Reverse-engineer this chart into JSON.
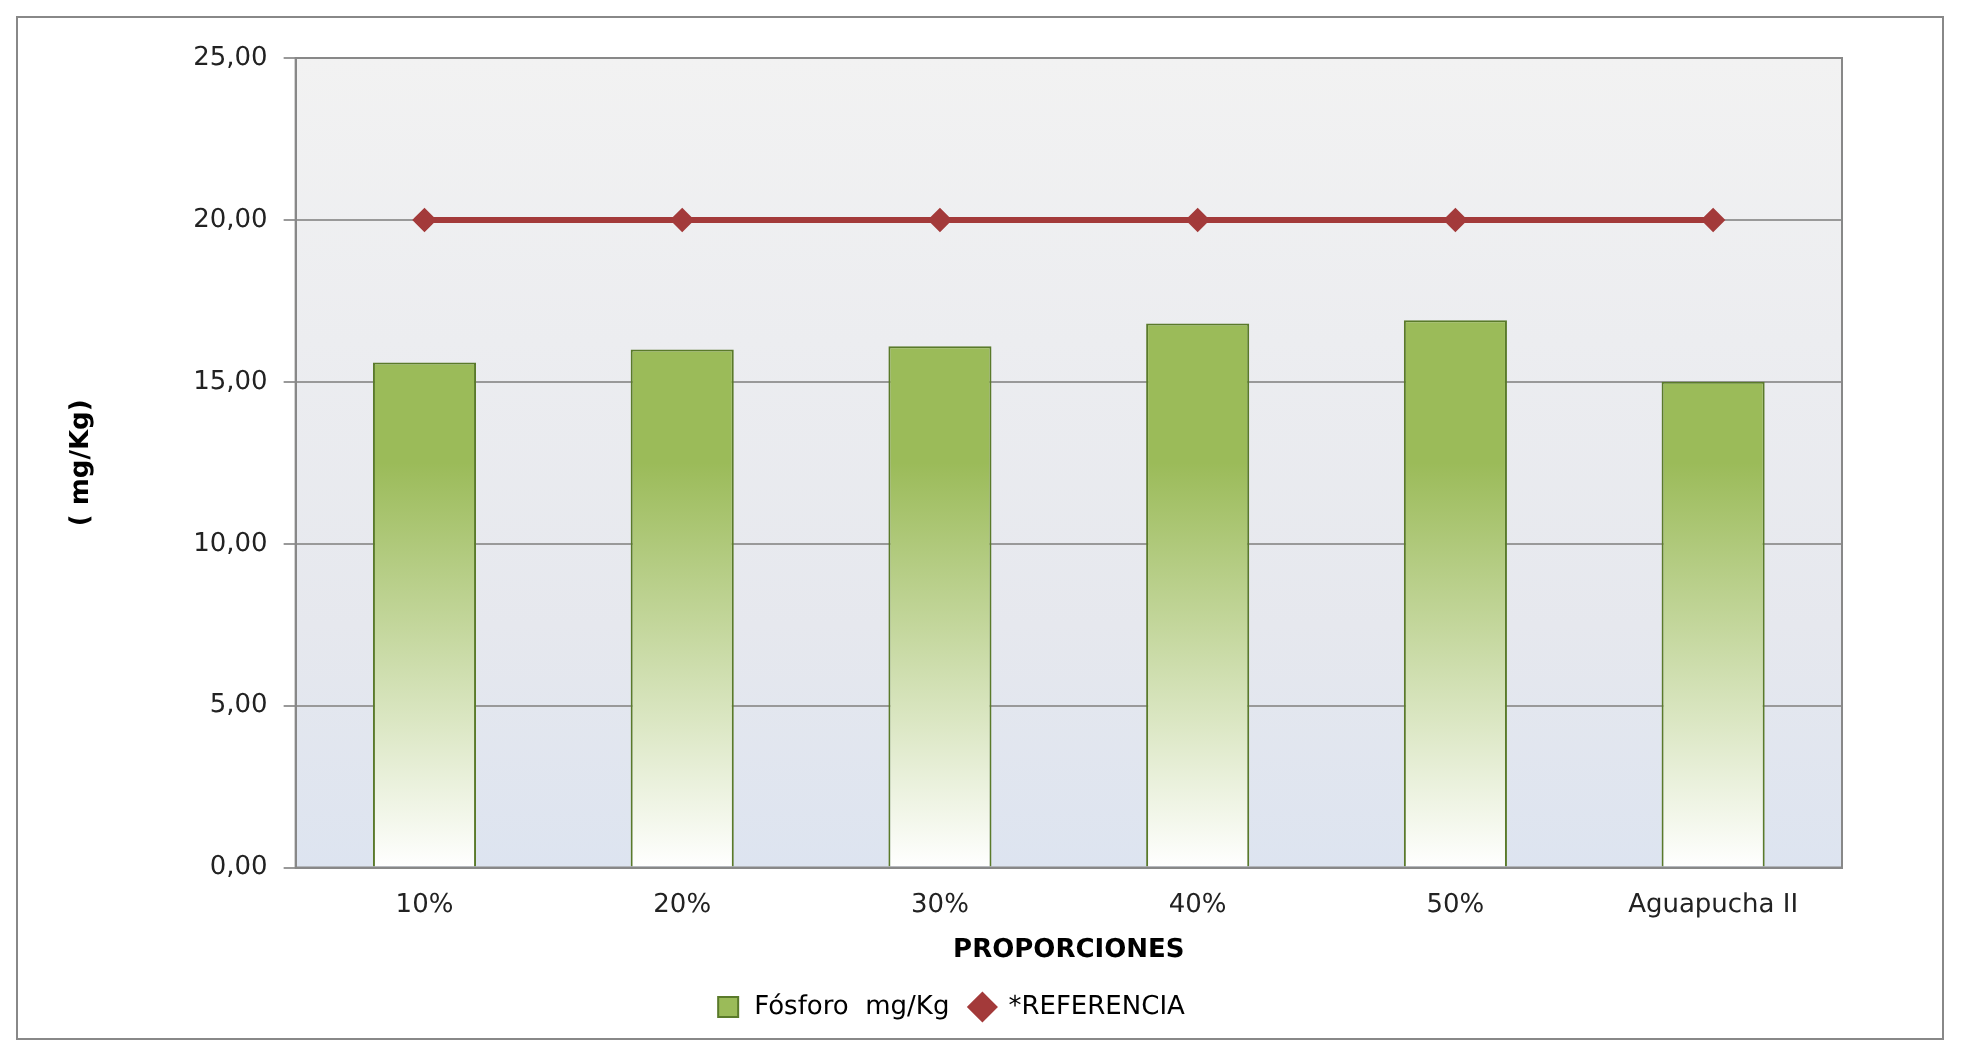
{
  "chart_data": {
    "type": "bar",
    "xlabel": "PROPORCIONES",
    "ylabel": "( mg/Kg)",
    "categories": [
      "10%",
      "20%",
      "30%",
      "40%",
      "50%",
      "Aguapucha II"
    ],
    "series": [
      {
        "name": "Fósforo  mg/Kg",
        "color": "#9bbb59",
        "values": [
          15.6,
          16.0,
          16.1,
          16.8,
          16.9,
          15.0
        ]
      },
      {
        "name": "*REFERENCIA",
        "type": "line",
        "color": "#a33a3a",
        "marker": "diamond",
        "values": [
          20,
          20,
          20,
          20,
          20,
          20
        ]
      }
    ],
    "ylim": [
      0,
      25
    ],
    "yticks": [
      {
        "value": 0,
        "label": "0,00"
      },
      {
        "value": 5,
        "label": "5,00"
      },
      {
        "value": 10,
        "label": "10,00"
      },
      {
        "value": 15,
        "label": "15,00"
      },
      {
        "value": 20,
        "label": "20,00"
      },
      {
        "value": 25,
        "label": "25,00"
      }
    ],
    "grid": "y",
    "legend": "bottom"
  }
}
